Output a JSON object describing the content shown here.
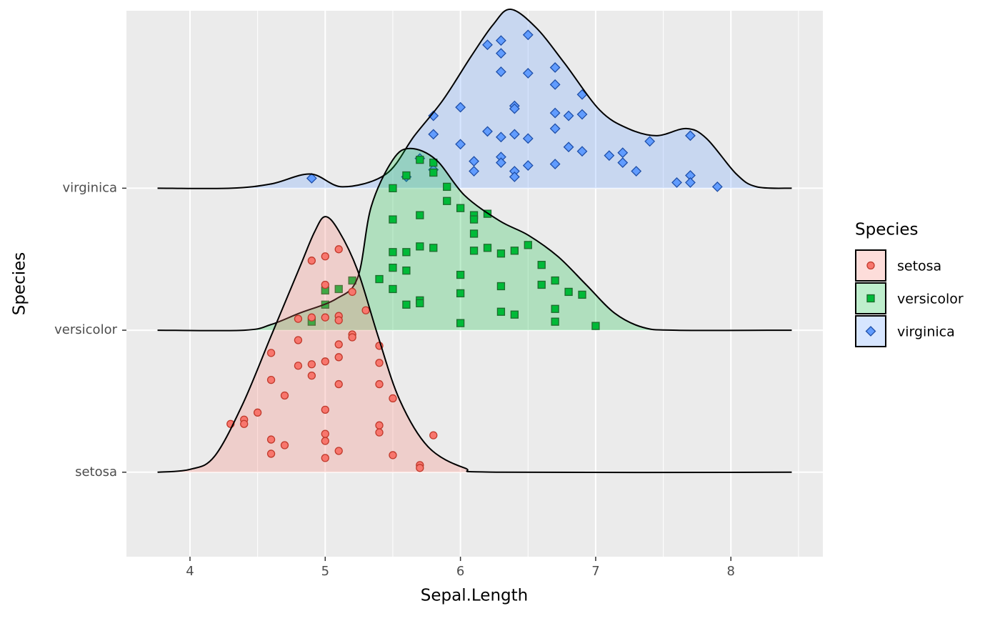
{
  "chart_data": {
    "type": "ridgeline",
    "x_label": "Sepal.Length",
    "y_label": "Species",
    "legend_title": "Species",
    "categories": [
      "setosa",
      "versicolor",
      "virginica"
    ],
    "xlim": [
      3.53,
      8.68
    ],
    "ylim": [
      0.405,
      4.25
    ],
    "xticks": [
      4,
      5,
      6,
      7,
      8
    ],
    "grid": true,
    "legend": "right",
    "fill_alpha": 0.25,
    "series": [
      {
        "name": "setosa",
        "color": "#F8766D",
        "outline": "#C0392B",
        "shape": "circle",
        "x": [
          4.3,
          4.4,
          4.4,
          4.5,
          4.6,
          4.6,
          4.6,
          4.6,
          4.7,
          4.7,
          4.8,
          4.8,
          4.8,
          4.9,
          4.9,
          4.9,
          4.9,
          5.0,
          5.0,
          5.0,
          5.0,
          5.0,
          5.0,
          5.0,
          5.0,
          5.1,
          5.1,
          5.1,
          5.1,
          5.1,
          5.1,
          5.1,
          5.2,
          5.2,
          5.2,
          5.3,
          5.4,
          5.4,
          5.4,
          5.4,
          5.4,
          5.5,
          5.5,
          5.7,
          5.7,
          5.8
        ],
        "y": [
          1.34,
          1.37,
          1.34,
          1.42,
          1.84,
          1.65,
          1.23,
          1.13,
          1.54,
          1.19,
          2.08,
          1.93,
          1.75,
          2.49,
          2.09,
          1.76,
          1.68,
          2.52,
          2.32,
          2.09,
          1.78,
          1.44,
          1.27,
          1.22,
          1.1,
          2.57,
          2.1,
          2.07,
          1.9,
          1.81,
          1.62,
          1.15,
          2.27,
          1.97,
          1.95,
          2.14,
          1.89,
          1.77,
          1.62,
          1.33,
          1.28,
          1.52,
          1.12,
          1.05,
          1.03,
          1.26
        ],
        "density_x": [
          3.76,
          4.0,
          4.18,
          4.39,
          4.6,
          4.81,
          4.92,
          5.0,
          5.1,
          5.24,
          5.39,
          5.55,
          5.76,
          6.03,
          6.3,
          8.45
        ],
        "density": [
          0,
          0.02,
          0.11,
          0.48,
          0.96,
          1.44,
          1.69,
          1.8,
          1.7,
          1.42,
          0.96,
          0.51,
          0.18,
          0.03,
          0,
          0
        ]
      },
      {
        "name": "versicolor",
        "color": "#00BA38",
        "outline": "#1E6B2E",
        "shape": "square",
        "x": [
          4.9,
          5.0,
          5.0,
          5.1,
          5.2,
          5.4,
          5.5,
          5.5,
          5.5,
          5.5,
          5.5,
          5.6,
          5.6,
          5.6,
          5.6,
          5.7,
          5.7,
          5.7,
          5.7,
          5.7,
          5.8,
          5.8,
          5.8,
          5.9,
          5.9,
          6.0,
          6.0,
          6.0,
          6.0,
          6.1,
          6.1,
          6.1,
          6.1,
          6.2,
          6.2,
          6.3,
          6.3,
          6.3,
          6.4,
          6.4,
          6.5,
          6.6,
          6.6,
          6.7,
          6.7,
          6.7,
          6.8,
          6.9,
          7.0
        ],
        "y": [
          2.06,
          2.28,
          2.18,
          2.29,
          2.35,
          2.36,
          3.0,
          2.78,
          2.55,
          2.44,
          2.29,
          3.09,
          2.55,
          2.42,
          2.18,
          3.2,
          2.81,
          2.59,
          2.21,
          2.19,
          3.18,
          3.11,
          2.58,
          3.01,
          2.91,
          2.86,
          2.39,
          2.26,
          2.05,
          2.81,
          2.78,
          2.68,
          2.56,
          2.82,
          2.58,
          2.54,
          2.31,
          2.13,
          2.56,
          2.11,
          2.6,
          2.46,
          2.32,
          2.35,
          2.15,
          2.06,
          2.27,
          2.25,
          2.03
        ],
        "density_x": [
          3.76,
          4.4,
          4.6,
          4.81,
          5.08,
          5.24,
          5.34,
          5.5,
          5.63,
          5.82,
          6.03,
          6.29,
          6.5,
          6.72,
          6.93,
          7.14,
          7.35,
          7.6,
          8.45
        ],
        "density": [
          0,
          0,
          0.04,
          0.12,
          0.22,
          0.37,
          0.87,
          1.2,
          1.28,
          1.2,
          0.95,
          0.77,
          0.67,
          0.52,
          0.32,
          0.12,
          0.02,
          0,
          0
        ]
      },
      {
        "name": "virginica",
        "color": "#619CFF",
        "outline": "#1F4FA8",
        "shape": "diamond",
        "x": [
          4.9,
          5.6,
          5.7,
          5.8,
          5.8,
          5.8,
          6.0,
          6.0,
          6.1,
          6.1,
          6.2,
          6.2,
          6.3,
          6.3,
          6.3,
          6.3,
          6.3,
          6.3,
          6.4,
          6.4,
          6.4,
          6.4,
          6.4,
          6.5,
          6.5,
          6.5,
          6.5,
          6.7,
          6.7,
          6.7,
          6.7,
          6.7,
          6.8,
          6.8,
          6.9,
          6.9,
          6.9,
          7.1,
          7.2,
          7.2,
          7.3,
          7.4,
          7.6,
          7.7,
          7.7,
          7.7,
          7.9
        ],
        "y": [
          3.07,
          3.08,
          3.21,
          3.51,
          3.38,
          3.13,
          3.57,
          3.31,
          3.19,
          3.12,
          4.01,
          3.4,
          4.04,
          3.95,
          3.82,
          3.36,
          3.22,
          3.18,
          3.58,
          3.56,
          3.38,
          3.12,
          3.08,
          4.08,
          3.81,
          3.35,
          3.16,
          3.85,
          3.73,
          3.53,
          3.42,
          3.17,
          3.51,
          3.29,
          3.66,
          3.52,
          3.26,
          3.23,
          3.25,
          3.18,
          3.12,
          3.33,
          3.04,
          3.37,
          3.09,
          3.04,
          3.01
        ],
        "density_x": [
          3.76,
          4.3,
          4.6,
          4.89,
          5.13,
          5.45,
          5.66,
          5.87,
          6.08,
          6.24,
          6.37,
          6.56,
          6.77,
          7.03,
          7.24,
          7.45,
          7.67,
          7.82,
          8.04,
          8.19,
          8.45
        ],
        "density": [
          0,
          0,
          0.03,
          0.1,
          0.01,
          0.1,
          0.37,
          0.62,
          0.93,
          1.15,
          1.26,
          1.13,
          0.88,
          0.55,
          0.42,
          0.37,
          0.42,
          0.35,
          0.1,
          0.01,
          0
        ]
      }
    ]
  }
}
